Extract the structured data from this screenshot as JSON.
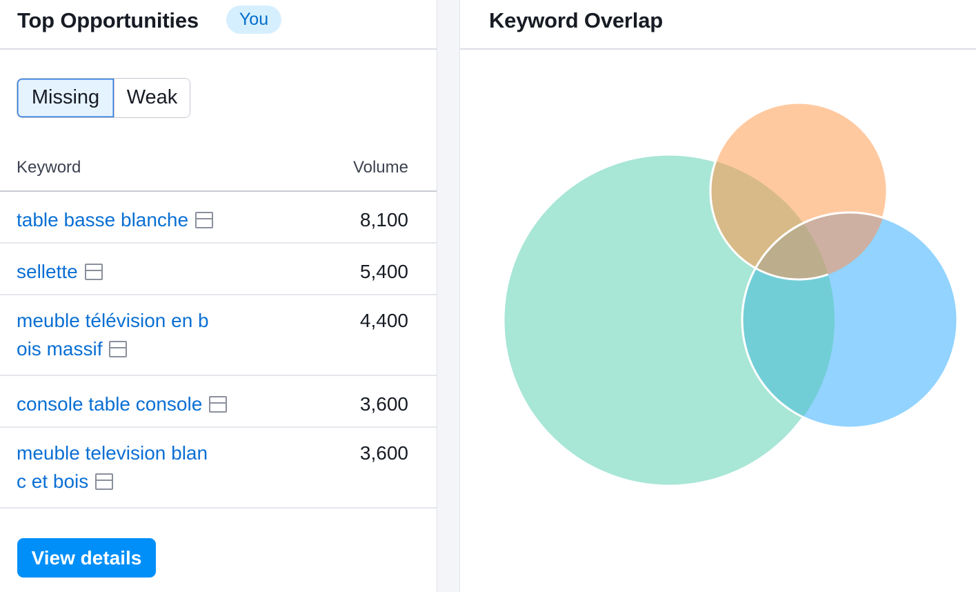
{
  "top_opportunities": {
    "title": "Top Opportunities",
    "badge": "You",
    "tabs": {
      "missing": "Missing",
      "weak": "Weak"
    },
    "columns": {
      "keyword": "Keyword",
      "volume": "Volume"
    },
    "rows": [
      {
        "lines": [
          "table basse blanche"
        ],
        "volume": "8,100"
      },
      {
        "lines": [
          "sellette"
        ],
        "volume": "5,400"
      },
      {
        "lines": [
          "meuble télévision en b",
          "ois massif"
        ],
        "volume": "4,400"
      },
      {
        "lines": [
          "console table console"
        ],
        "volume": "3,600"
      },
      {
        "lines": [
          "meuble television blan",
          "c et bois"
        ],
        "volume": "3,600"
      }
    ],
    "row_icon": "serp-features-icon",
    "view_details_label": "View details"
  },
  "keyword_overlap": {
    "title": "Keyword Overlap",
    "circles": [
      {
        "name": "large-domain-circle",
        "color": "#a8e6d6"
      },
      {
        "name": "orange-domain-circle",
        "color": "#ffc9a0"
      },
      {
        "name": "blue-domain-circle",
        "color": "#92d3ff"
      }
    ],
    "overlap_colors": {
      "green-orange": "#d8ba88",
      "orange-blue": "#cdb0a1",
      "green-blue": "#72ced6",
      "all-three": "#bcae8c"
    }
  }
}
